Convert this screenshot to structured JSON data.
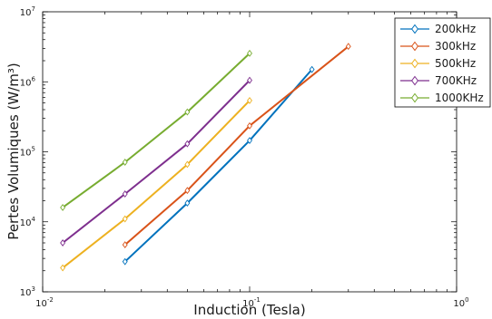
{
  "chart_data": {
    "type": "line",
    "xscale": "log",
    "yscale": "log",
    "xlabel": "Induction (Tesla)",
    "ylabel": "Pertes Volumiques (W/m³)",
    "xlim": [
      0.01,
      1
    ],
    "ylim": [
      1000,
      10000000
    ],
    "x_tick_labels": [
      {
        "value": 0.01,
        "base": "10",
        "exp": "-2"
      },
      {
        "value": 0.1,
        "base": "10",
        "exp": "-1"
      },
      {
        "value": 1,
        "base": "10",
        "exp": "0"
      }
    ],
    "y_tick_labels": [
      {
        "value": 1000,
        "base": "10",
        "exp": "3"
      },
      {
        "value": 10000,
        "base": "10",
        "exp": "4"
      },
      {
        "value": 100000,
        "base": "10",
        "exp": "5"
      },
      {
        "value": 1000000,
        "base": "10",
        "exp": "6"
      },
      {
        "value": 10000000,
        "base": "10",
        "exp": "7"
      }
    ],
    "grid": false,
    "legend_position": "top-right",
    "marker": "diamond",
    "series": [
      {
        "name": "200kHz",
        "color": "#0072BD",
        "x": [
          0.025,
          0.05,
          0.1,
          0.2
        ],
        "y": [
          2700,
          18500,
          145000,
          1500000
        ]
      },
      {
        "name": "300kHz",
        "color": "#D95319",
        "x": [
          0.025,
          0.05,
          0.1,
          0.3
        ],
        "y": [
          4700,
          28000,
          235000,
          3200000
        ]
      },
      {
        "name": "500kHz",
        "color": "#EDB120",
        "x": [
          0.0125,
          0.025,
          0.05,
          0.1
        ],
        "y": [
          2200,
          11000,
          66000,
          540000
        ]
      },
      {
        "name": "700KHz",
        "color": "#7E2F8E",
        "x": [
          0.0125,
          0.025,
          0.05,
          0.1
        ],
        "y": [
          5000,
          25000,
          130000,
          1050000
        ]
      },
      {
        "name": "1000KHz",
        "color": "#77AC30",
        "x": [
          0.0125,
          0.025,
          0.05,
          0.1
        ],
        "y": [
          16000,
          71000,
          370000,
          2550000
        ]
      }
    ]
  }
}
